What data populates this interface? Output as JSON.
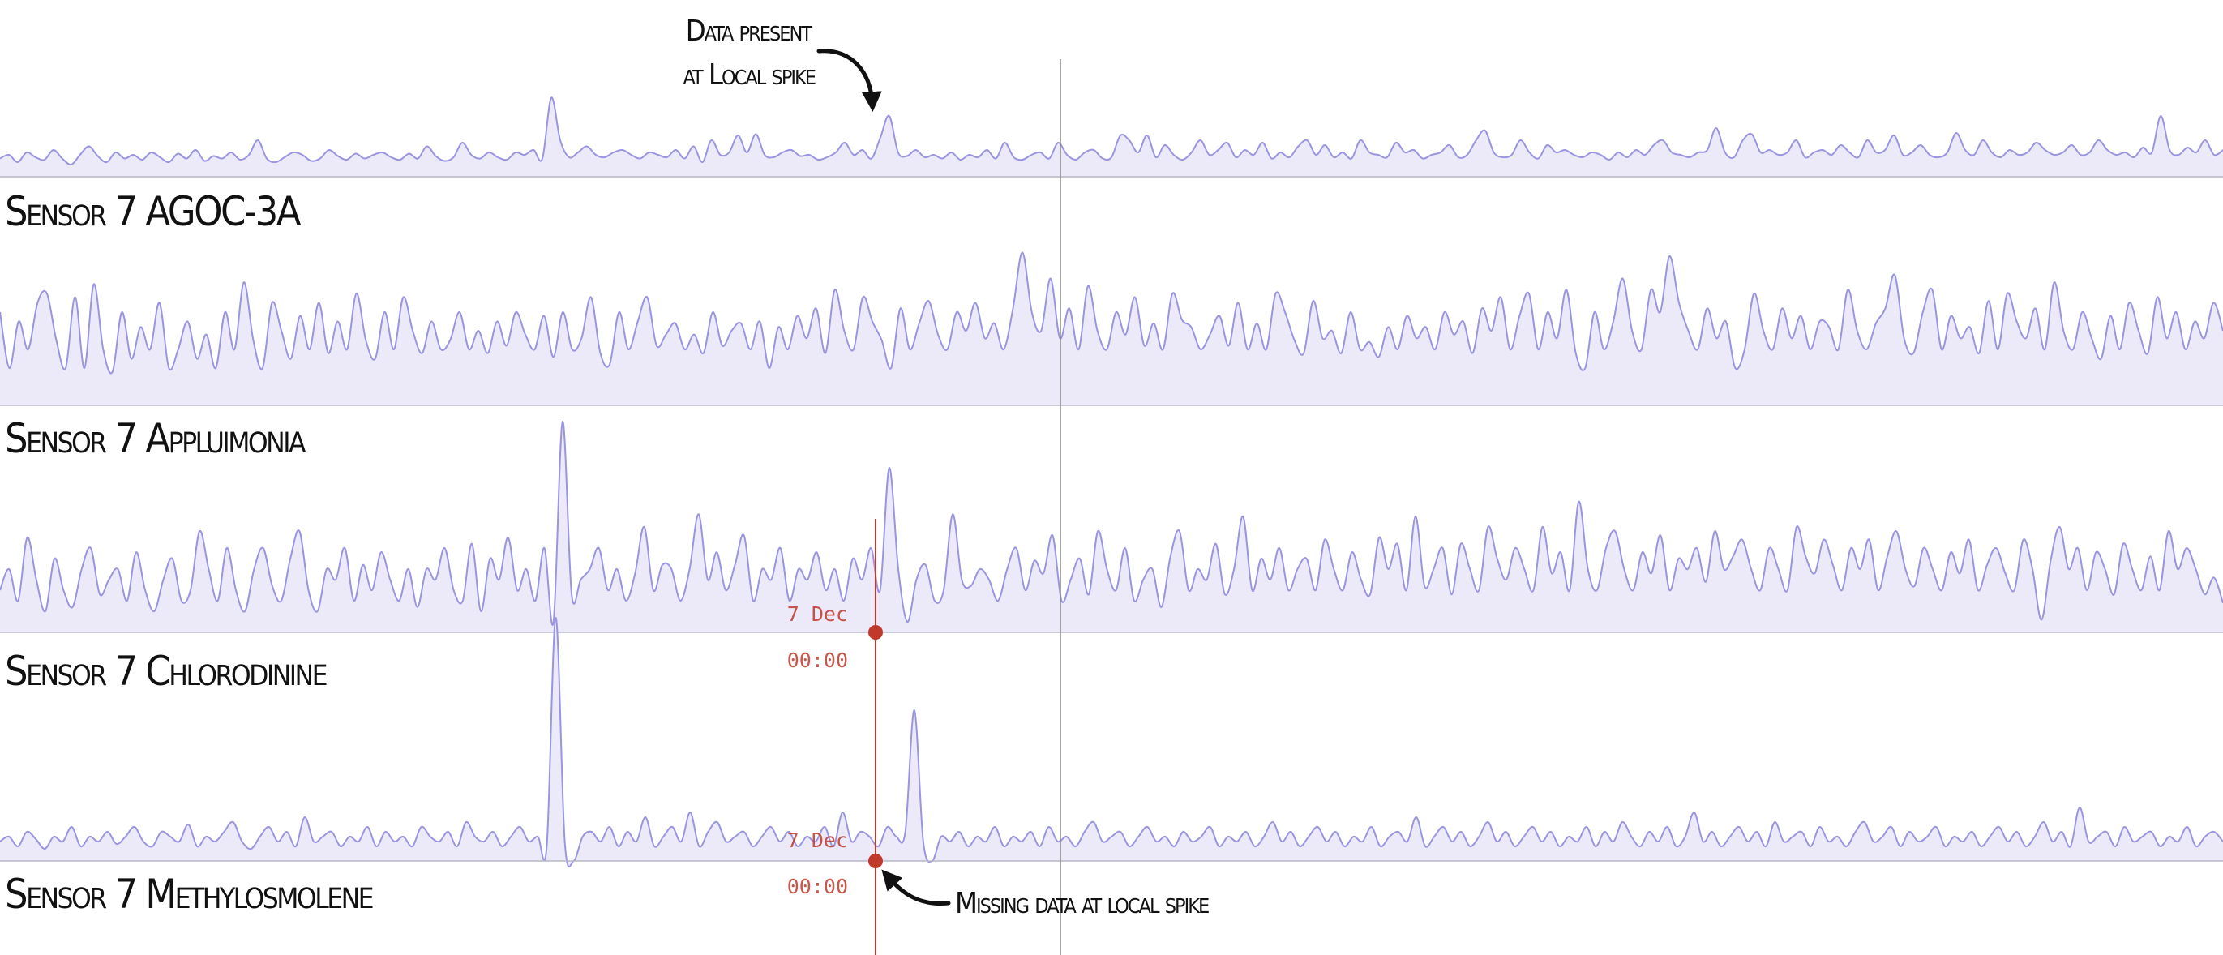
{
  "chart_data": {
    "type": "area",
    "colors": {
      "fill": "#eceaf9",
      "line": "#9a95e0",
      "cursor": "#c0392b",
      "baseline": "#b8b8c8",
      "guide": "#888888"
    },
    "cursor": {
      "date_label": "7 Dec",
      "time_label": "00:00"
    },
    "series": [
      {
        "name": "Sensor 7 AGOC-3A",
        "values": [
          0.15,
          0.18,
          0.12,
          0.2,
          0.16,
          0.14,
          0.22,
          0.15,
          0.1,
          0.18,
          0.25,
          0.17,
          0.12,
          0.2,
          0.15,
          0.18,
          0.14,
          0.2,
          0.16,
          0.12,
          0.19,
          0.15,
          0.22,
          0.13,
          0.17,
          0.15,
          0.2,
          0.14,
          0.18,
          0.3,
          0.15,
          0.12,
          0.16,
          0.2,
          0.18,
          0.13,
          0.15,
          0.22,
          0.17,
          0.14,
          0.19,
          0.15,
          0.18,
          0.2,
          0.16,
          0.14,
          0.19,
          0.15,
          0.25,
          0.17,
          0.13,
          0.16,
          0.28,
          0.18,
          0.15,
          0.2,
          0.16,
          0.14,
          0.2,
          0.18,
          0.22,
          0.15,
          0.65,
          0.3,
          0.16,
          0.2,
          0.25,
          0.18,
          0.16,
          0.2,
          0.22,
          0.18,
          0.15,
          0.2,
          0.18,
          0.16,
          0.22,
          0.15,
          0.25,
          0.12,
          0.3,
          0.18,
          0.2,
          0.34,
          0.2,
          0.35,
          0.18,
          0.16,
          0.2,
          0.22,
          0.17,
          0.18,
          0.14,
          0.16,
          0.2,
          0.28,
          0.18,
          0.22,
          0.15,
          0.32,
          0.5,
          0.2,
          0.17,
          0.22,
          0.16,
          0.18,
          0.15,
          0.2,
          0.14,
          0.18,
          0.16,
          0.22,
          0.15,
          0.28,
          0.16,
          0.14,
          0.18,
          0.2,
          0.15,
          0.28,
          0.18,
          0.14,
          0.2,
          0.22,
          0.15,
          0.16,
          0.34,
          0.3,
          0.2,
          0.34,
          0.16,
          0.26,
          0.18,
          0.14,
          0.2,
          0.3,
          0.18,
          0.22,
          0.28,
          0.16,
          0.22,
          0.18,
          0.28,
          0.15,
          0.2,
          0.16,
          0.25,
          0.3,
          0.18,
          0.26,
          0.16,
          0.2,
          0.15,
          0.3,
          0.2,
          0.18,
          0.16,
          0.28,
          0.2,
          0.22,
          0.15,
          0.18,
          0.2,
          0.26,
          0.16,
          0.18,
          0.3,
          0.38,
          0.2,
          0.16,
          0.18,
          0.3,
          0.2,
          0.15,
          0.26,
          0.2,
          0.22,
          0.18,
          0.16,
          0.2,
          0.18,
          0.14,
          0.2,
          0.16,
          0.22,
          0.18,
          0.26,
          0.3,
          0.2,
          0.18,
          0.16,
          0.2,
          0.22,
          0.4,
          0.2,
          0.16,
          0.3,
          0.35,
          0.2,
          0.22,
          0.18,
          0.2,
          0.3,
          0.16,
          0.2,
          0.22,
          0.18,
          0.26,
          0.2,
          0.16,
          0.3,
          0.2,
          0.22,
          0.34,
          0.18,
          0.2,
          0.26,
          0.18,
          0.16,
          0.2,
          0.36,
          0.22,
          0.18,
          0.3,
          0.2,
          0.16,
          0.22,
          0.18,
          0.2,
          0.28,
          0.22,
          0.18,
          0.2,
          0.26,
          0.18,
          0.2,
          0.3,
          0.22,
          0.18,
          0.2,
          0.16,
          0.24,
          0.2,
          0.5,
          0.22,
          0.18,
          0.24,
          0.2,
          0.3,
          0.18,
          0.22
        ]
      },
      {
        "name": "Sensor 7 Appluimonia",
        "values": [
          0.5,
          0.2,
          0.45,
          0.3,
          0.55,
          0.6,
          0.35,
          0.2,
          0.58,
          0.2,
          0.65,
          0.3,
          0.18,
          0.5,
          0.25,
          0.42,
          0.3,
          0.55,
          0.2,
          0.3,
          0.45,
          0.25,
          0.38,
          0.2,
          0.5,
          0.3,
          0.66,
          0.35,
          0.2,
          0.55,
          0.4,
          0.25,
          0.48,
          0.3,
          0.55,
          0.28,
          0.45,
          0.3,
          0.6,
          0.35,
          0.25,
          0.5,
          0.3,
          0.58,
          0.4,
          0.28,
          0.45,
          0.3,
          0.35,
          0.5,
          0.3,
          0.4,
          0.28,
          0.45,
          0.32,
          0.5,
          0.38,
          0.3,
          0.48,
          0.26,
          0.5,
          0.3,
          0.36,
          0.58,
          0.28,
          0.22,
          0.5,
          0.3,
          0.45,
          0.58,
          0.32,
          0.38,
          0.44,
          0.3,
          0.38,
          0.28,
          0.5,
          0.32,
          0.4,
          0.44,
          0.3,
          0.45,
          0.2,
          0.42,
          0.3,
          0.48,
          0.36,
          0.52,
          0.28,
          0.62,
          0.4,
          0.3,
          0.58,
          0.45,
          0.35,
          0.2,
          0.52,
          0.3,
          0.44,
          0.56,
          0.38,
          0.3,
          0.5,
          0.4,
          0.55,
          0.36,
          0.44,
          0.3,
          0.52,
          0.82,
          0.5,
          0.4,
          0.68,
          0.36,
          0.52,
          0.3,
          0.64,
          0.4,
          0.3,
          0.5,
          0.38,
          0.58,
          0.32,
          0.44,
          0.3,
          0.6,
          0.46,
          0.42,
          0.3,
          0.38,
          0.48,
          0.32,
          0.55,
          0.3,
          0.44,
          0.3,
          0.6,
          0.5,
          0.35,
          0.28,
          0.56,
          0.36,
          0.4,
          0.28,
          0.5,
          0.3,
          0.34,
          0.26,
          0.42,
          0.3,
          0.48,
          0.36,
          0.42,
          0.3,
          0.5,
          0.38,
          0.45,
          0.28,
          0.52,
          0.4,
          0.58,
          0.3,
          0.48,
          0.6,
          0.3,
          0.5,
          0.36,
          0.62,
          0.28,
          0.2,
          0.5,
          0.3,
          0.45,
          0.68,
          0.4,
          0.3,
          0.62,
          0.5,
          0.8,
          0.55,
          0.4,
          0.3,
          0.52,
          0.36,
          0.45,
          0.2,
          0.3,
          0.6,
          0.4,
          0.3,
          0.52,
          0.36,
          0.48,
          0.3,
          0.45,
          0.42,
          0.3,
          0.62,
          0.4,
          0.3,
          0.44,
          0.52,
          0.7,
          0.36,
          0.28,
          0.5,
          0.62,
          0.3,
          0.48,
          0.36,
          0.42,
          0.28,
          0.56,
          0.3,
          0.6,
          0.45,
          0.36,
          0.52,
          0.3,
          0.66,
          0.4,
          0.3,
          0.5,
          0.36,
          0.25,
          0.48,
          0.3,
          0.55,
          0.4,
          0.28,
          0.58,
          0.36,
          0.5,
          0.3,
          0.45,
          0.36,
          0.55,
          0.4
        ]
      },
      {
        "name": "Sensor 7 Chlorodinine",
        "values": [
          0.2,
          0.3,
          0.15,
          0.45,
          0.25,
          0.1,
          0.35,
          0.2,
          0.12,
          0.3,
          0.4,
          0.18,
          0.25,
          0.3,
          0.15,
          0.38,
          0.2,
          0.1,
          0.25,
          0.35,
          0.15,
          0.2,
          0.48,
          0.3,
          0.15,
          0.4,
          0.2,
          0.1,
          0.3,
          0.4,
          0.22,
          0.15,
          0.35,
          0.48,
          0.2,
          0.1,
          0.3,
          0.25,
          0.4,
          0.15,
          0.32,
          0.2,
          0.38,
          0.25,
          0.15,
          0.3,
          0.12,
          0.3,
          0.25,
          0.4,
          0.2,
          0.15,
          0.42,
          0.1,
          0.35,
          0.25,
          0.45,
          0.2,
          0.3,
          0.15,
          0.4,
          0.05,
          1.0,
          0.18,
          0.25,
          0.3,
          0.4,
          0.2,
          0.3,
          0.15,
          0.28,
          0.5,
          0.2,
          0.32,
          0.3,
          0.15,
          0.3,
          0.56,
          0.25,
          0.38,
          0.2,
          0.32,
          0.46,
          0.15,
          0.3,
          0.25,
          0.4,
          0.15,
          0.3,
          0.25,
          0.38,
          0.2,
          0.3,
          0.15,
          0.35,
          0.25,
          0.4,
          0.2,
          0.78,
          0.3,
          0.05,
          0.25,
          0.32,
          0.15,
          0.2,
          0.56,
          0.25,
          0.22,
          0.3,
          0.25,
          0.15,
          0.3,
          0.4,
          0.2,
          0.34,
          0.28,
          0.46,
          0.15,
          0.25,
          0.35,
          0.18,
          0.48,
          0.3,
          0.2,
          0.4,
          0.15,
          0.25,
          0.3,
          0.12,
          0.36,
          0.48,
          0.2,
          0.3,
          0.25,
          0.42,
          0.18,
          0.3,
          0.55,
          0.2,
          0.35,
          0.25,
          0.4,
          0.2,
          0.3,
          0.35,
          0.2,
          0.44,
          0.3,
          0.2,
          0.38,
          0.25,
          0.18,
          0.45,
          0.3,
          0.42,
          0.2,
          0.55,
          0.22,
          0.3,
          0.4,
          0.18,
          0.42,
          0.3,
          0.2,
          0.5,
          0.35,
          0.25,
          0.4,
          0.3,
          0.2,
          0.5,
          0.28,
          0.38,
          0.2,
          0.62,
          0.3,
          0.2,
          0.4,
          0.48,
          0.3,
          0.2,
          0.38,
          0.28,
          0.46,
          0.2,
          0.35,
          0.3,
          0.4,
          0.24,
          0.48,
          0.3,
          0.36,
          0.44,
          0.3,
          0.2,
          0.4,
          0.3,
          0.2,
          0.5,
          0.36,
          0.28,
          0.44,
          0.32,
          0.2,
          0.4,
          0.3,
          0.44,
          0.2,
          0.36,
          0.48,
          0.3,
          0.22,
          0.4,
          0.3,
          0.2,
          0.38,
          0.28,
          0.44,
          0.2,
          0.32,
          0.4,
          0.28,
          0.2,
          0.44,
          0.3,
          0.06,
          0.34,
          0.5,
          0.3,
          0.4,
          0.2,
          0.38,
          0.3,
          0.18,
          0.42,
          0.3,
          0.2,
          0.36,
          0.2,
          0.48,
          0.3,
          0.4,
          0.3,
          0.18,
          0.26,
          0.14
        ]
      },
      {
        "name": "Sensor 7 Methylosmolene",
        "values": [
          0.08,
          0.1,
          0.06,
          0.12,
          0.09,
          0.05,
          0.1,
          0.08,
          0.14,
          0.06,
          0.1,
          0.08,
          0.12,
          0.07,
          0.1,
          0.14,
          0.08,
          0.06,
          0.12,
          0.1,
          0.08,
          0.15,
          0.06,
          0.1,
          0.08,
          0.12,
          0.16,
          0.08,
          0.05,
          0.1,
          0.14,
          0.08,
          0.12,
          0.06,
          0.18,
          0.08,
          0.1,
          0.12,
          0.06,
          0.1,
          0.08,
          0.14,
          0.06,
          0.12,
          0.08,
          0.1,
          0.06,
          0.14,
          0.1,
          0.08,
          0.12,
          0.06,
          0.16,
          0.1,
          0.08,
          0.12,
          0.06,
          0.1,
          0.14,
          0.08,
          0.1,
          0.06,
          1.0,
          0.08,
          0.0,
          0.1,
          0.12,
          0.08,
          0.14,
          0.06,
          0.12,
          0.08,
          0.18,
          0.06,
          0.1,
          0.14,
          0.08,
          0.2,
          0.06,
          0.12,
          0.16,
          0.08,
          0.1,
          0.12,
          0.06,
          0.1,
          0.14,
          0.08,
          0.12,
          0.06,
          0.1,
          0.08,
          0.14,
          0.06,
          0.2,
          0.08,
          0.12,
          0.1,
          0.06,
          0.14,
          0.1,
          0.12,
          0.62,
          0.08,
          0.0,
          0.1,
          0.08,
          0.12,
          0.06,
          0.1,
          0.08,
          0.14,
          0.06,
          0.1,
          0.08,
          0.12,
          0.06,
          0.14,
          0.08,
          0.1,
          0.06,
          0.12,
          0.16,
          0.08,
          0.1,
          0.12,
          0.06,
          0.1,
          0.14,
          0.08,
          0.1,
          0.06,
          0.12,
          0.08,
          0.1,
          0.14,
          0.06,
          0.1,
          0.08,
          0.12,
          0.06,
          0.1,
          0.16,
          0.08,
          0.12,
          0.06,
          0.1,
          0.14,
          0.08,
          0.12,
          0.06,
          0.1,
          0.08,
          0.14,
          0.06,
          0.1,
          0.12,
          0.08,
          0.18,
          0.06,
          0.1,
          0.14,
          0.08,
          0.12,
          0.06,
          0.1,
          0.16,
          0.08,
          0.12,
          0.06,
          0.1,
          0.14,
          0.08,
          0.12,
          0.06,
          0.1,
          0.08,
          0.14,
          0.06,
          0.12,
          0.08,
          0.16,
          0.1,
          0.06,
          0.12,
          0.08,
          0.14,
          0.06,
          0.1,
          0.2,
          0.08,
          0.12,
          0.06,
          0.1,
          0.14,
          0.08,
          0.12,
          0.06,
          0.16,
          0.08,
          0.1,
          0.12,
          0.06,
          0.14,
          0.08,
          0.1,
          0.06,
          0.12,
          0.16,
          0.08,
          0.1,
          0.14,
          0.06,
          0.12,
          0.08,
          0.1,
          0.14,
          0.06,
          0.1,
          0.08,
          0.12,
          0.06,
          0.1,
          0.14,
          0.08,
          0.12,
          0.06,
          0.1,
          0.16,
          0.08,
          0.12,
          0.06,
          0.22,
          0.08,
          0.1,
          0.12,
          0.06,
          0.14,
          0.08,
          0.1,
          0.12,
          0.06,
          0.1,
          0.08,
          0.14,
          0.06,
          0.1,
          0.12,
          0.08
        ]
      }
    ],
    "annotations": {
      "present": {
        "line1": "Data present",
        "line2": "at Local spike"
      },
      "missing": {
        "text": "Missing data at local spike"
      }
    }
  }
}
